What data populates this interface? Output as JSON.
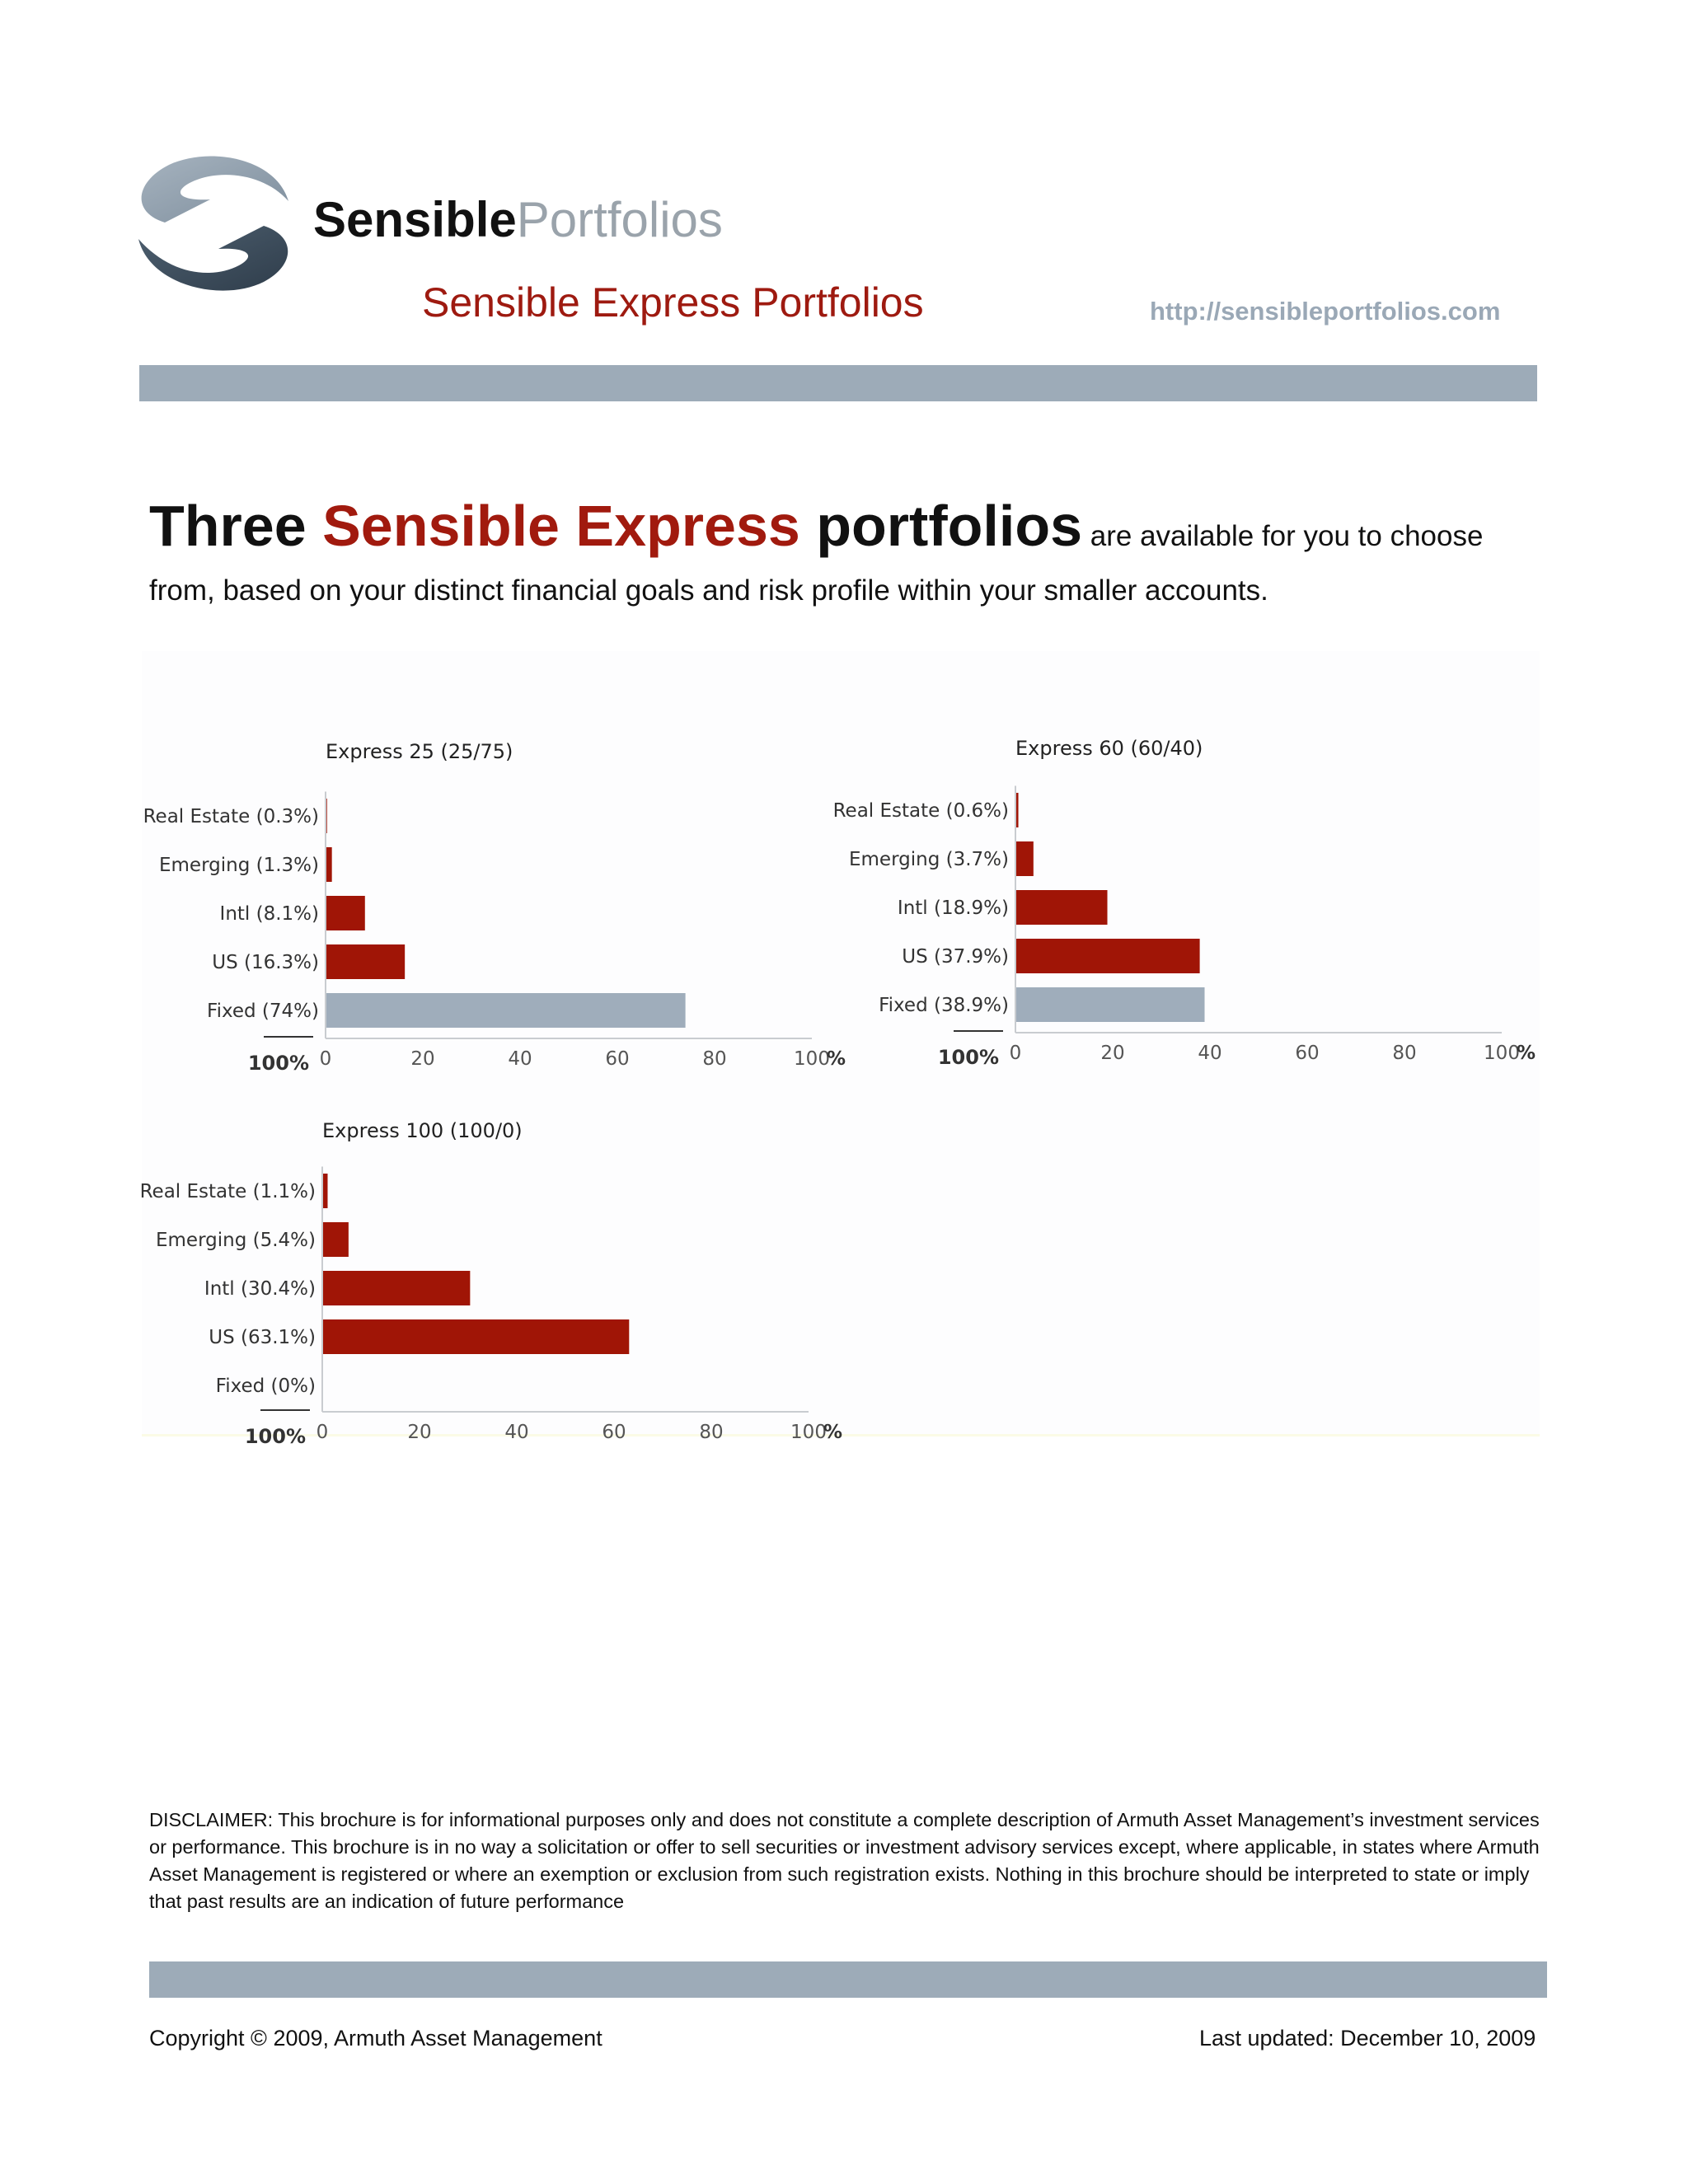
{
  "header": {
    "brand_strong": "Sensible",
    "brand_light": "Portfolios",
    "subtitle": "Sensible Express Portfolios",
    "url": "http://sensibleportfolios.com"
  },
  "intro": {
    "word1": "Three ",
    "word2": "Sensible Express",
    "word3": " portfolios",
    "rest": " are available for you to choose from, based on your distinct financial goals and risk profile within your smaller accounts."
  },
  "colors": {
    "accent_red": "#a11a0e",
    "bar_red": "#a01506",
    "bar_gray": "#9fadbb",
    "band_gray": "#9dabb8",
    "link_gray": "#9aa8b6"
  },
  "chart_data": [
    {
      "type": "bar",
      "orientation": "horizontal",
      "title": "Express 25 (25/75)",
      "categories": [
        "Real Estate (0.3%)",
        "Emerging (1.3%)",
        "Intl (8.1%)",
        "US (16.3%)",
        "Fixed (74%)"
      ],
      "values": [
        0.3,
        1.3,
        8.1,
        16.3,
        74
      ],
      "bar_colors": [
        "#a01506",
        "#a01506",
        "#a01506",
        "#a01506",
        "#9fadbb"
      ],
      "xticks": [
        "0",
        "20",
        "40",
        "60",
        "80",
        "100"
      ],
      "unit": "%",
      "total_label": "100%",
      "xlim": [
        0,
        100
      ]
    },
    {
      "type": "bar",
      "orientation": "horizontal",
      "title": "Express 60 (60/40)",
      "categories": [
        "Real Estate (0.6%)",
        "Emerging (3.7%)",
        "Intl (18.9%)",
        "US (37.9%)",
        "Fixed (38.9%)"
      ],
      "values": [
        0.6,
        3.7,
        18.9,
        37.9,
        38.9
      ],
      "bar_colors": [
        "#a01506",
        "#a01506",
        "#a01506",
        "#a01506",
        "#9fadbb"
      ],
      "xticks": [
        "0",
        "20",
        "40",
        "60",
        "80",
        "100"
      ],
      "unit": "%",
      "total_label": "100%",
      "xlim": [
        0,
        100
      ]
    },
    {
      "type": "bar",
      "orientation": "horizontal",
      "title": "Express 100 (100/0)",
      "categories": [
        "Real Estate (1.1%)",
        "Emerging (5.4%)",
        "Intl (30.4%)",
        "US (63.1%)",
        "Fixed (0%)"
      ],
      "values": [
        1.1,
        5.4,
        30.4,
        63.1,
        0
      ],
      "bar_colors": [
        "#a01506",
        "#a01506",
        "#a01506",
        "#a01506",
        "#9fadbb"
      ],
      "xticks": [
        "0",
        "20",
        "40",
        "60",
        "80",
        "100"
      ],
      "unit": "%",
      "total_label": "100%",
      "xlim": [
        0,
        100
      ]
    }
  ],
  "disclaimer": "DISCLAIMER: This brochure is for informational purposes only and does not constitute a complete description of Armuth Asset Management’s investment services or performance. This brochure is in no way a solicitation or offer to sell securities or investment advisory services except, where applicable, in states where Armuth Asset Management is registered or where an exemption or exclusion from such registration exists. Nothing in this brochure should be interpreted to state or imply that past results are an indication of future performance",
  "footer": {
    "copyright": "Copyright © 2009, Armuth Asset Management",
    "last_updated": "Last updated: December 10, 2009"
  }
}
